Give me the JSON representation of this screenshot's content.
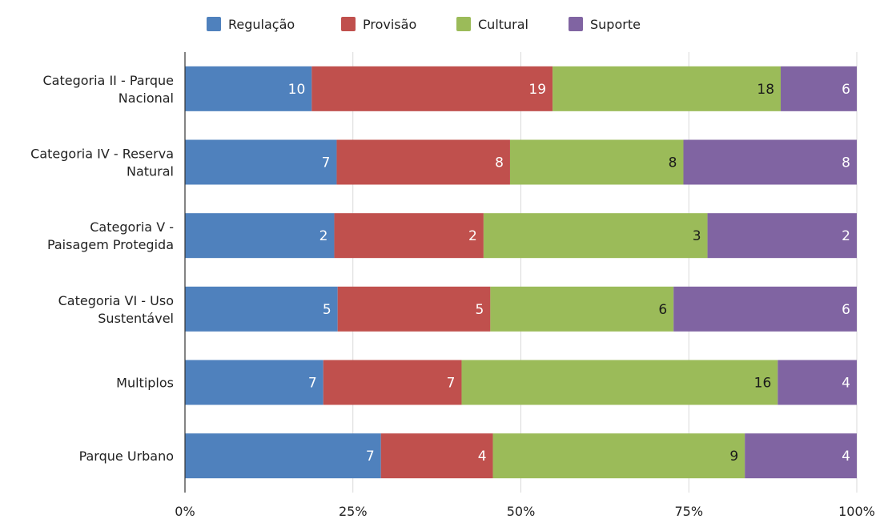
{
  "chart_data": {
    "type": "bar",
    "orientation": "horizontal",
    "stacked": "percent",
    "categories": [
      "Categoria II - Parque Nacional",
      "Categoria IV - Reserva Natural",
      "Categoria V - Paisagem Protegida",
      "Categoria VI - Uso Sustentável",
      "Multiplos",
      "Parque Urbano"
    ],
    "category_label_lines": [
      [
        "Categoria II - Parque",
        "Nacional"
      ],
      [
        "Categoria IV - Reserva",
        "Natural"
      ],
      [
        "Categoria V -",
        "Paisagem Protegida"
      ],
      [
        "Categoria VI - Uso",
        "Sustentável"
      ],
      [
        "Multiplos"
      ],
      [
        "Parque Urbano"
      ]
    ],
    "series": [
      {
        "name": "Regulação",
        "color": "#4f81bd",
        "label_color": "#ffffff",
        "values": [
          10,
          7,
          2,
          5,
          7,
          7
        ]
      },
      {
        "name": "Provisão",
        "color": "#c0504d",
        "label_color": "#ffffff",
        "values": [
          19,
          8,
          2,
          5,
          7,
          4
        ]
      },
      {
        "name": "Cultural",
        "color": "#9bbb59",
        "label_color": "#1a1a1a",
        "values": [
          18,
          8,
          3,
          6,
          16,
          9
        ]
      },
      {
        "name": "Suporte",
        "color": "#8064a2",
        "label_color": "#ffffff",
        "values": [
          6,
          8,
          2,
          6,
          4,
          4
        ]
      }
    ],
    "x_ticks": [
      "0%",
      "25%",
      "50%",
      "75%",
      "100%"
    ],
    "xlim": [
      0,
      100
    ],
    "grid": true,
    "legend_position": "top"
  }
}
